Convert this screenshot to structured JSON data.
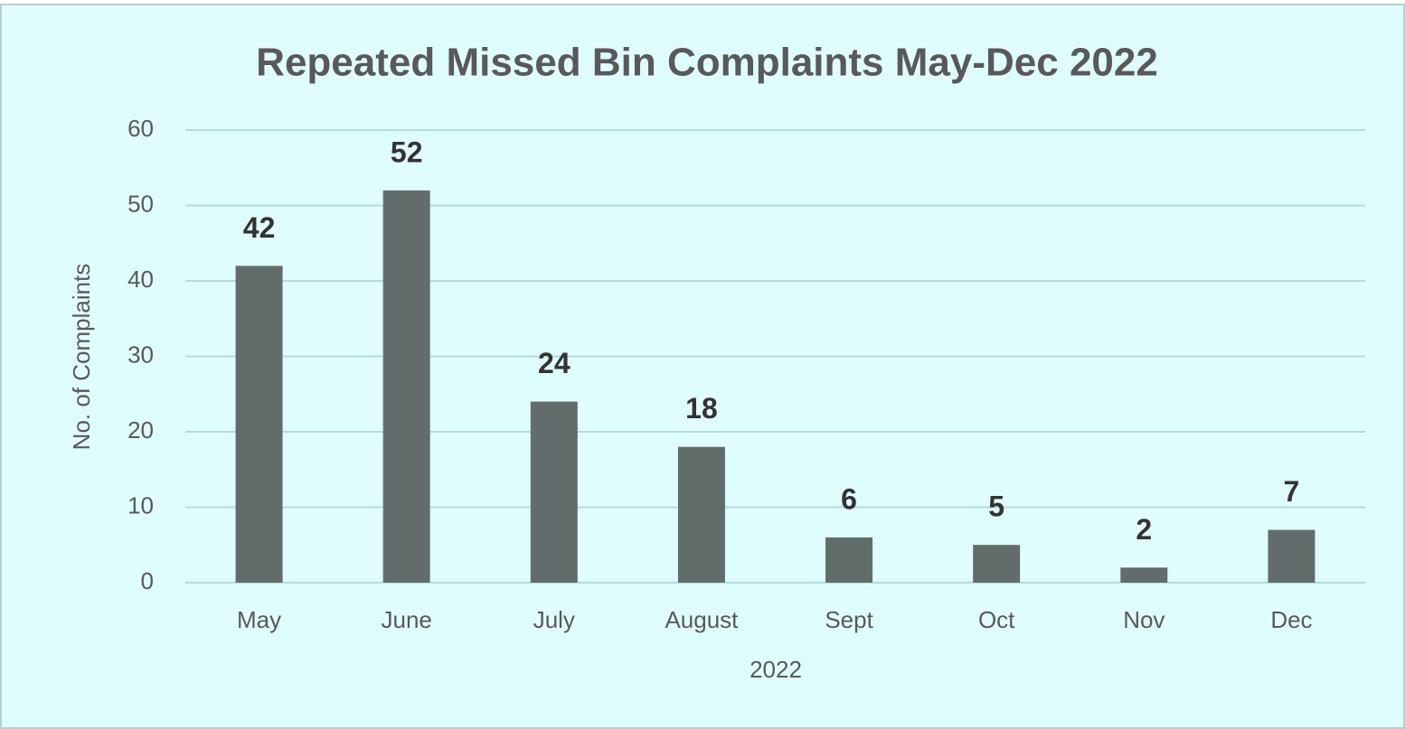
{
  "chart_data": {
    "type": "bar",
    "title": "Repeated Missed Bin Complaints May-Dec 2022",
    "x_label": "2022",
    "y_label": "No. of Complaints",
    "categories": [
      "May",
      "June",
      "July",
      "August",
      "Sept",
      "Oct",
      "Nov",
      "Dec"
    ],
    "values": [
      42,
      52,
      24,
      18,
      6,
      5,
      2,
      7
    ],
    "color": "#626d6b",
    "ylim": [
      0,
      60
    ],
    "yticks": [
      0,
      10,
      20,
      30,
      40,
      50,
      60
    ],
    "grid": true
  }
}
